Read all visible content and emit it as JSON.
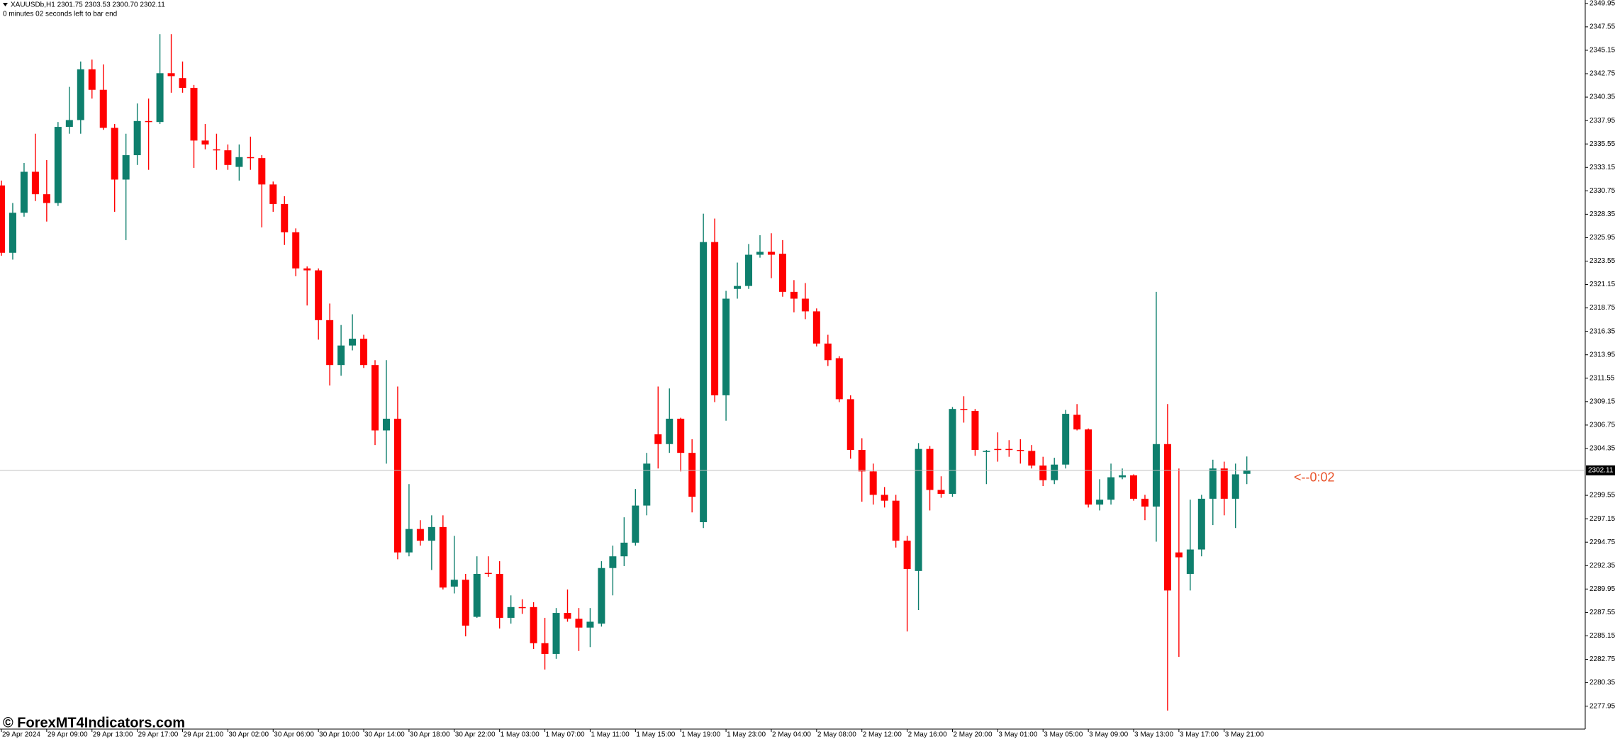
{
  "chart_data": {
    "type": "candlestick",
    "title": "XAUUSDb,H1  2301.75 2303.53 2300.70 2302.11",
    "subtitle": "0 minutes 02 seconds left to bar end",
    "annotation": "<--0:02",
    "watermark": "© ForexMT4Indicators.com",
    "current_price": 2302.11,
    "up_color": "#0e7f6d",
    "down_color": "#ff0000",
    "ylim": [
      2275.6,
      2350.3
    ],
    "yticks": [
      2277.95,
      2280.35,
      2282.75,
      2285.15,
      2287.55,
      2289.95,
      2292.35,
      2294.75,
      2297.15,
      2299.55,
      2304.35,
      2306.75,
      2309.15,
      2311.55,
      2313.95,
      2316.35,
      2318.75,
      2321.15,
      2323.55,
      2325.95,
      2328.35,
      2330.75,
      2333.15,
      2335.55,
      2337.95,
      2340.35,
      2342.75,
      2345.15,
      2347.55,
      2349.95
    ],
    "categories": [
      "29 Apr 2024",
      null,
      null,
      null,
      "29 Apr 09:00",
      null,
      null,
      null,
      "29 Apr 13:00",
      null,
      null,
      null,
      "29 Apr 17:00",
      null,
      null,
      null,
      "29 Apr 21:00",
      null,
      null,
      null,
      "30 Apr 02:00",
      null,
      null,
      null,
      "30 Apr 06:00",
      null,
      null,
      null,
      "30 Apr 10:00",
      null,
      null,
      null,
      "30 Apr 14:00",
      null,
      null,
      null,
      "30 Apr 18:00",
      null,
      null,
      null,
      "30 Apr 22:00",
      null,
      null,
      null,
      "1 May 03:00",
      null,
      null,
      null,
      "1 May 07:00",
      null,
      null,
      null,
      "1 May 11:00",
      null,
      null,
      null,
      "1 May 15:00",
      null,
      null,
      null,
      "1 May 19:00",
      null,
      null,
      null,
      "1 May 23:00",
      null,
      null,
      null,
      "2 May 04:00",
      null,
      null,
      null,
      "2 May 08:00",
      null,
      null,
      null,
      "2 May 12:00",
      null,
      null,
      null,
      "2 May 16:00",
      null,
      null,
      null,
      "2 May 20:00",
      null,
      null,
      null,
      "3 May 01:00",
      null,
      null,
      null,
      "3 May 05:00",
      null,
      null,
      null,
      "3 May 09:00",
      null,
      null,
      null,
      "3 May 13:00",
      null,
      null,
      null,
      "3 May 17:00",
      null,
      null,
      null,
      "3 May 21:00",
      null,
      null
    ],
    "open": [
      2331.3,
      2324.4,
      2328.5,
      2332.7,
      2330.4,
      2329.5,
      2337.3,
      2338.0,
      2343.2,
      2341.1,
      2337.2,
      2331.9,
      2334.4,
      2337.9,
      2337.8,
      2342.8,
      2342.3,
      2341.3,
      2335.9,
      2335.0,
      2334.9,
      2333.2,
      2334.2,
      2334.1,
      2331.4,
      2329.4,
      2326.5,
      2322.8,
      2322.6,
      2317.5,
      2312.9,
      2314.9,
      2315.6,
      2312.9,
      2306.2,
      2307.4,
      2293.7,
      2296.1,
      2294.9,
      2296.3,
      2290.2,
      2290.9,
      2287.1,
      2291.6,
      2291.5,
      2287.0,
      2288.1,
      2288.1,
      2284.4,
      2283.3,
      2287.5,
      2286.9,
      2286.0,
      2286.4,
      2292.1,
      2293.3,
      2294.7,
      2298.5,
      2305.8,
      2304.8,
      2307.4,
      2303.9,
      2296.8,
      2325.5,
      2309.8,
      2320.7,
      2321.0,
      2324.2,
      2324.5,
      2324.3,
      2320.4,
      2319.7,
      2318.4,
      2315.1,
      2313.6,
      2309.4,
      2304.2,
      2302.0,
      2299.6,
      2299.0,
      2294.9,
      2291.8,
      2304.3,
      2300.1,
      2299.7,
      2308.4,
      2308.2,
      2304.0,
      2304.3,
      2304.3,
      2304.2,
      2304.1,
      2302.6,
      2301.1,
      2302.7,
      2307.8,
      2306.3,
      2298.6,
      2299.1,
      2301.4,
      2301.6,
      2299.2,
      2298.4,
      2304.8,
      2293.7,
      2291.5,
      2294.0,
      2299.2,
      2302.3,
      2299.2,
      2301.75
    ],
    "high": [
      2331.8,
      2329.5,
      2333.6,
      2336.6,
      2333.9,
      2337.8,
      2341.4,
      2344.0,
      2344.2,
      2343.7,
      2337.6,
      2336.6,
      2339.7,
      2340.2,
      2346.8,
      2346.8,
      2344.0,
      2341.6,
      2337.6,
      2336.6,
      2335.5,
      2335.5,
      2336.3,
      2334.4,
      2331.7,
      2330.2,
      2326.9,
      2323.0,
      2322.8,
      2319.2,
      2317.0,
      2318.1,
      2316.0,
      2313.4,
      2313.4,
      2310.7,
      2300.7,
      2297.0,
      2297.5,
      2297.5,
      2295.4,
      2291.5,
      2293.3,
      2293.3,
      2292.8,
      2289.3,
      2288.9,
      2288.6,
      2287.0,
      2288.0,
      2289.9,
      2288.0,
      2288.0,
      2292.8,
      2294.4,
      2297.3,
      2300.2,
      2303.9,
      2310.7,
      2310.5,
      2307.5,
      2305.3,
      2328.4,
      2327.9,
      2320.5,
      2323.4,
      2325.3,
      2326.2,
      2326.4,
      2325.7,
      2321.6,
      2321.3,
      2318.7,
      2316.0,
      2313.8,
      2309.8,
      2305.4,
      2302.8,
      2300.4,
      2299.6,
      2295.4,
      2304.9,
      2304.6,
      2301.5,
      2308.6,
      2309.7,
      2308.4,
      2304.2,
      2306.0,
      2305.2,
      2305.3,
      2304.7,
      2303.5,
      2303.4,
      2308.3,
      2308.9,
      2306.4,
      2301.2,
      2302.8,
      2302.3,
      2301.7,
      2299.6,
      2320.4,
      2308.9,
      2302.3,
      2299.1,
      2299.6,
      2303.2,
      2303.0,
      2302.8,
      2303.53
    ],
    "low": [
      2324.1,
      2323.7,
      2328.1,
      2329.7,
      2327.6,
      2329.2,
      2336.6,
      2336.6,
      2340.2,
      2337.0,
      2328.6,
      2325.7,
      2333.4,
      2332.9,
      2337.6,
      2340.8,
      2340.8,
      2333.1,
      2335.0,
      2332.9,
      2332.9,
      2331.8,
      2332.9,
      2327.0,
      2328.6,
      2325.2,
      2322.0,
      2319.0,
      2315.5,
      2310.8,
      2311.8,
      2314.4,
      2312.6,
      2304.7,
      2302.8,
      2293.0,
      2293.3,
      2294.4,
      2291.9,
      2289.9,
      2289.5,
      2285.1,
      2287.0,
      2291.2,
      2285.9,
      2286.4,
      2287.4,
      2283.8,
      2281.7,
      2282.8,
      2286.6,
      2283.6,
      2284.0,
      2286.1,
      2289.3,
      2292.3,
      2294.4,
      2297.5,
      2302.3,
      2303.9,
      2302.0,
      2297.8,
      2296.2,
      2309.1,
      2307.2,
      2319.7,
      2320.7,
      2323.9,
      2321.8,
      2319.9,
      2318.3,
      2317.6,
      2314.8,
      2312.8,
      2309.1,
      2303.3,
      2298.9,
      2298.6,
      2298.3,
      2294.2,
      2285.6,
      2287.8,
      2298.0,
      2299.3,
      2299.4,
      2307.0,
      2303.6,
      2300.7,
      2303.0,
      2303.5,
      2302.8,
      2302.3,
      2300.5,
      2300.7,
      2302.3,
      2306.2,
      2298.3,
      2298.0,
      2298.6,
      2301.2,
      2299.0,
      2297.0,
      2294.8,
      2277.5,
      2283.0,
      2289.8,
      2293.3,
      2296.5,
      2297.5,
      2296.2,
      2300.7
    ],
    "close": [
      2324.4,
      2328.5,
      2332.7,
      2330.4,
      2329.5,
      2337.3,
      2338.0,
      2343.2,
      2341.1,
      2337.2,
      2331.9,
      2334.4,
      2337.9,
      2337.8,
      2342.8,
      2342.5,
      2341.3,
      2335.9,
      2335.5,
      2334.9,
      2333.4,
      2334.2,
      2334.1,
      2331.4,
      2329.4,
      2326.5,
      2322.8,
      2322.6,
      2317.5,
      2312.9,
      2314.9,
      2315.6,
      2312.9,
      2306.2,
      2307.4,
      2293.7,
      2296.1,
      2294.9,
      2296.3,
      2290.1,
      2290.9,
      2286.2,
      2291.5,
      2291.5,
      2287.0,
      2288.1,
      2288.0,
      2284.4,
      2283.3,
      2287.5,
      2286.9,
      2286.0,
      2286.6,
      2292.1,
      2293.3,
      2294.7,
      2298.5,
      2302.8,
      2304.8,
      2307.4,
      2303.9,
      2299.4,
      2325.5,
      2309.8,
      2319.7,
      2321.0,
      2324.2,
      2324.5,
      2324.2,
      2320.4,
      2319.7,
      2318.4,
      2315.1,
      2313.4,
      2309.4,
      2304.2,
      2302.0,
      2299.6,
      2299.0,
      2294.9,
      2292.0,
      2304.3,
      2300.1,
      2299.7,
      2308.4,
      2308.3,
      2304.2,
      2304.1,
      2304.2,
      2304.2,
      2304.1,
      2302.6,
      2301.1,
      2302.7,
      2307.9,
      2306.3,
      2298.6,
      2299.1,
      2301.4,
      2301.6,
      2299.2,
      2298.4,
      2304.8,
      2289.8,
      2293.2,
      2294.0,
      2299.2,
      2302.3,
      2299.2,
      2301.7,
      2302.11
    ]
  }
}
